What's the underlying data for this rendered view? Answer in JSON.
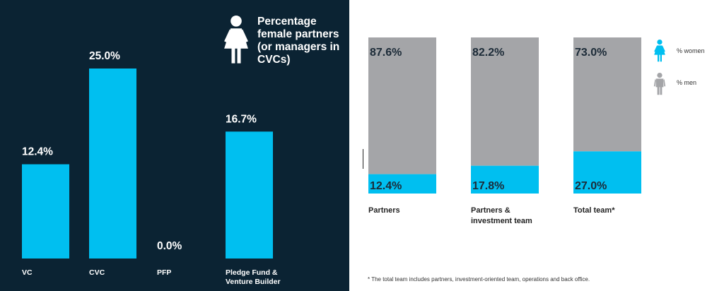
{
  "colors": {
    "dark_bg": "#0b2333",
    "accent": "#00bff0",
    "men_gray": "#a4a5a8",
    "white": "#ffffff",
    "text_dark": "#1c2b38"
  },
  "chart_data": [
    {
      "type": "bar",
      "title": "Percentage female partners (or managers in CVCs)",
      "categories": [
        "VC",
        "CVC",
        "PFP",
        "Pledge Fund & Venture Builder"
      ],
      "values": [
        12.4,
        25.0,
        0.0,
        16.7
      ],
      "value_labels": [
        "12.4%",
        "25.0%",
        "0.0%",
        "16.7%"
      ],
      "ylim": [
        0,
        30
      ],
      "grid": false,
      "legend_icon": "female-person-icon"
    },
    {
      "type": "bar",
      "stacked": true,
      "percent": true,
      "categories": [
        "Partners",
        "Partners & investment team",
        "Total team*"
      ],
      "series": [
        {
          "name": "% women",
          "values": [
            12.4,
            17.8,
            27.0
          ],
          "labels": [
            "12.4%",
            "17.8%",
            "27.0%"
          ]
        },
        {
          "name": "% men",
          "values": [
            87.6,
            82.2,
            73.0
          ],
          "labels": [
            "87.6%",
            "82.2%",
            "73.0%"
          ]
        }
      ],
      "ylim": [
        0,
        100
      ],
      "grid": false,
      "legend_placement": "right",
      "legend_icons": [
        "female-person-icon",
        "male-person-icon"
      ]
    }
  ],
  "footnote": "* The total team includes partners, investment-oriented team, operations and back office."
}
